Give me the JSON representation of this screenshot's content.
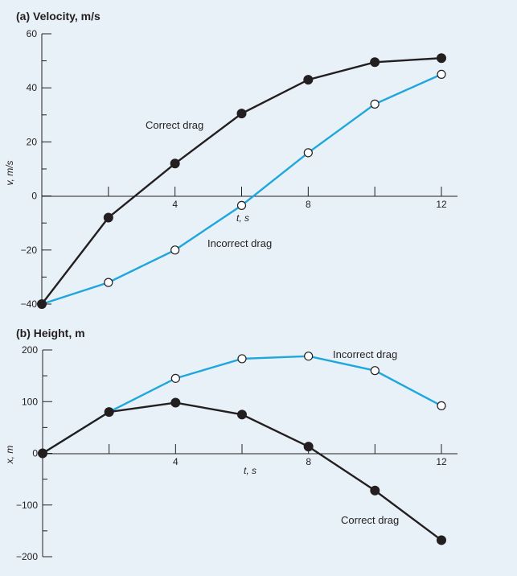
{
  "chart_data": [
    {
      "type": "line",
      "title": "(a) Velocity, m/s",
      "xlabel": "t, s",
      "ylabel": "v, m/s",
      "xlim": [
        0,
        12
      ],
      "ylim": [
        -40,
        60
      ],
      "xticks": [
        4,
        8,
        12
      ],
      "yticks": [
        -40,
        -20,
        0,
        20,
        40,
        60
      ],
      "x": [
        0,
        2,
        4,
        6,
        8,
        10,
        12
      ],
      "series": [
        {
          "name": "Correct drag",
          "values": [
            -40,
            -8,
            12,
            30.5,
            43,
            49.5,
            51
          ],
          "color": "#231f20",
          "marker": "filled"
        },
        {
          "name": "Incorrect drag",
          "values": [
            -40,
            -32,
            -20,
            -3.5,
            16,
            34,
            45
          ],
          "color": "#1ea6dd",
          "marker": "open"
        }
      ]
    },
    {
      "type": "line",
      "title": "(b) Height, m",
      "xlabel": "t, s",
      "ylabel": "x, m",
      "xlim": [
        0,
        12
      ],
      "ylim": [
        -200,
        200
      ],
      "xticks": [
        4,
        8,
        12
      ],
      "yticks": [
        -200,
        -100,
        0,
        100,
        200
      ],
      "x": [
        0,
        2,
        4,
        6,
        8,
        10,
        12
      ],
      "series": [
        {
          "name": "Correct drag",
          "values": [
            0,
            80,
            98,
            75,
            13,
            -72,
            -168
          ],
          "color": "#231f20",
          "marker": "filled"
        },
        {
          "name": "Incorrect drag",
          "values": [
            0,
            80,
            145,
            183,
            188,
            160,
            92
          ],
          "color": "#1ea6dd",
          "marker": "open"
        }
      ]
    }
  ]
}
